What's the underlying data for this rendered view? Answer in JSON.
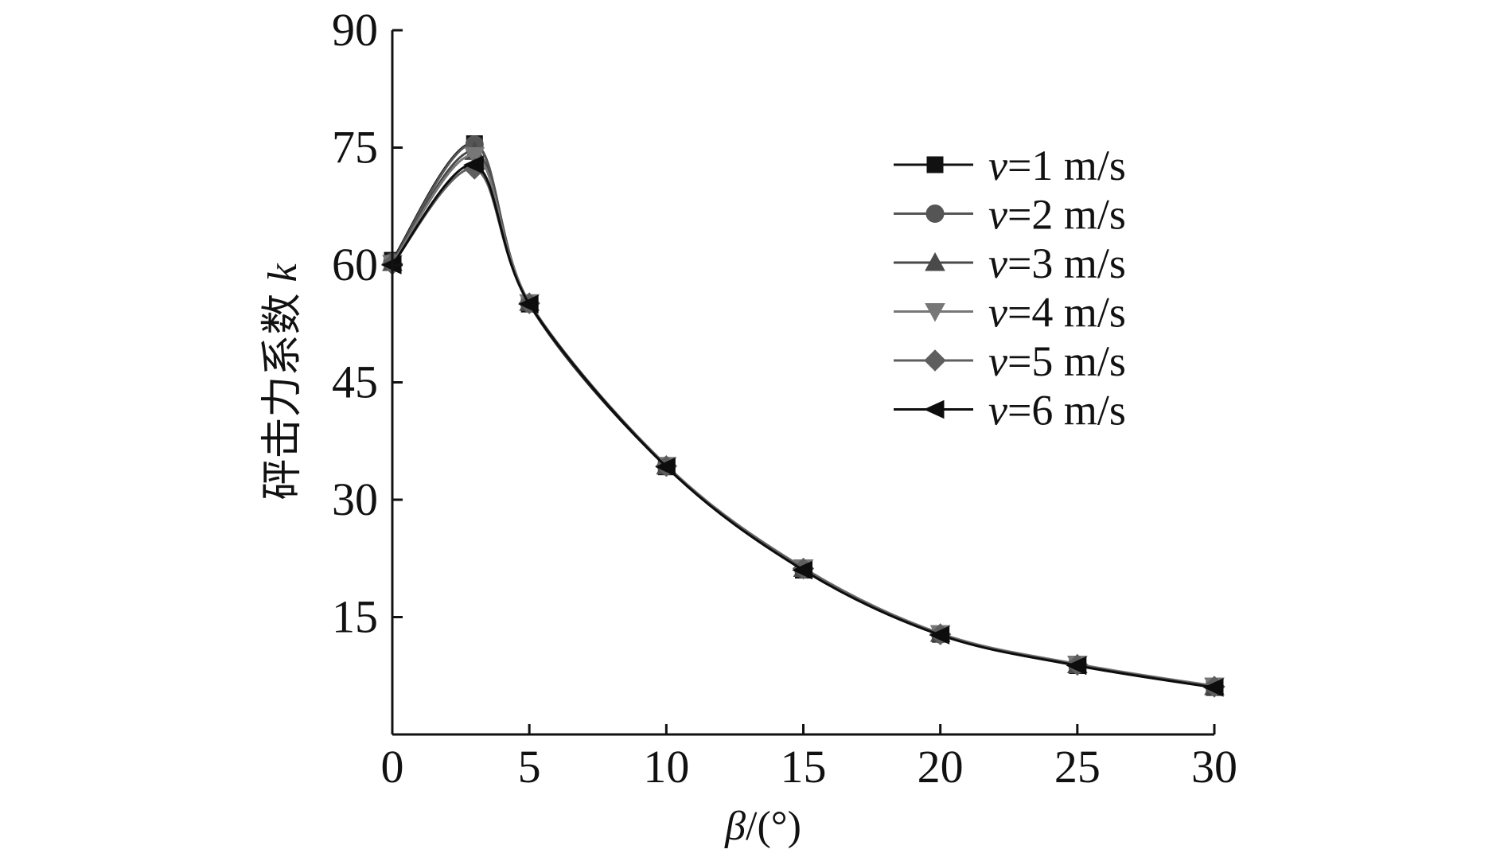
{
  "chart_data": {
    "type": "line",
    "title": "",
    "xlabel": {
      "symbol": "β",
      "suffix": "/(°)"
    },
    "ylabel": {
      "text": "砰击力系数",
      "symbol": "k"
    },
    "xlim": [
      0,
      30
    ],
    "ylim": [
      0,
      90
    ],
    "x_ticks": [
      0,
      5,
      10,
      15,
      20,
      25,
      30
    ],
    "y_ticks": [
      15,
      30,
      45,
      60,
      75,
      90
    ],
    "grid": false,
    "legend_position": "top-right",
    "x": [
      0,
      3,
      5,
      10,
      15,
      20,
      25,
      30
    ],
    "series": [
      {
        "name": "v=1 m/s",
        "prefix": "v",
        "suffix": "=1 m/s",
        "marker": "square",
        "color": "#111111",
        "values": [
          60.6,
          75.5,
          55.0,
          34.2,
          21.0,
          12.8,
          8.8,
          6.0
        ]
      },
      {
        "name": "v=2 m/s",
        "prefix": "v",
        "suffix": "=2 m/s",
        "marker": "circle",
        "color": "#555555",
        "values": [
          60.4,
          75.4,
          55.1,
          34.3,
          21.1,
          12.8,
          8.9,
          6.1
        ]
      },
      {
        "name": "v=3 m/s",
        "prefix": "v",
        "suffix": "=3 m/s",
        "marker": "triangle-up",
        "color": "#4a4a4a",
        "values": [
          60.3,
          74.5,
          55.2,
          34.3,
          21.2,
          12.9,
          8.9,
          6.1
        ]
      },
      {
        "name": "v=4 m/s",
        "prefix": "v",
        "suffix": "=4 m/s",
        "marker": "triangle-down",
        "color": "#777777",
        "values": [
          60.2,
          74.0,
          55.2,
          34.4,
          21.3,
          12.9,
          9.0,
          6.2
        ]
      },
      {
        "name": "v=5 m/s",
        "prefix": "v",
        "suffix": "=5 m/s",
        "marker": "diamond",
        "color": "#5e5e5e",
        "values": [
          60.1,
          72.3,
          55.1,
          34.3,
          21.2,
          12.8,
          8.9,
          6.1
        ]
      },
      {
        "name": "v=6 m/s",
        "prefix": "v",
        "suffix": "=6 m/s",
        "marker": "triangle-left",
        "color": "#0d0d0d",
        "values": [
          60.0,
          72.8,
          55.0,
          34.2,
          21.0,
          12.7,
          8.8,
          6.0
        ]
      }
    ]
  }
}
